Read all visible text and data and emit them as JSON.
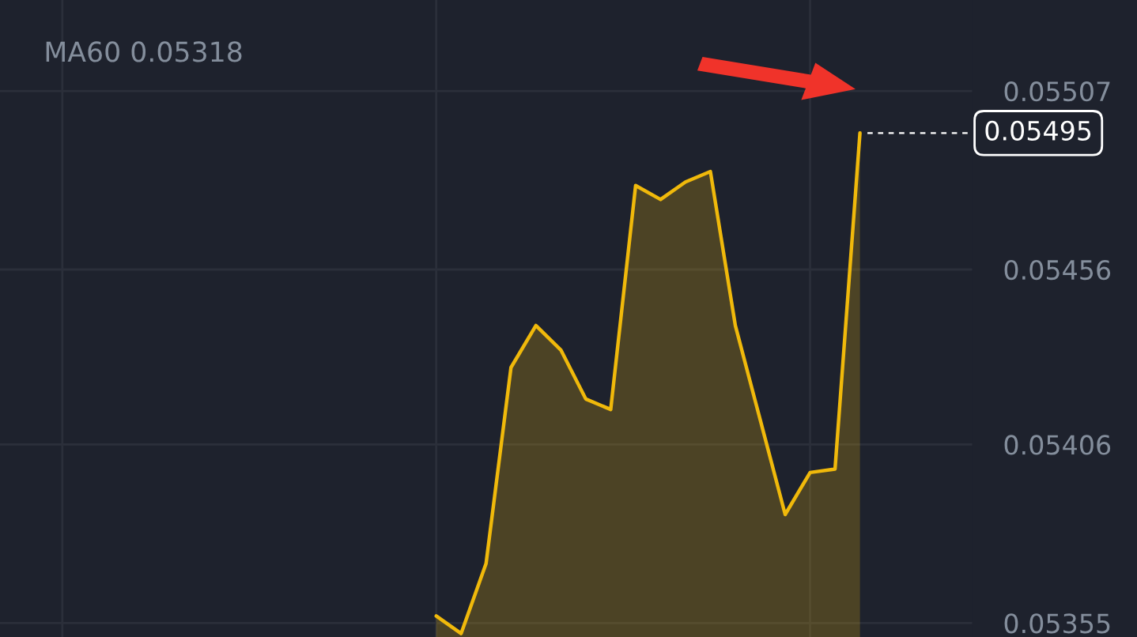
{
  "chart_data": {
    "type": "area",
    "categories": [
      null,
      null,
      null,
      null,
      null,
      null,
      null,
      null,
      null,
      null,
      null,
      null,
      null,
      null,
      null,
      null,
      null,
      null,
      null,
      null,
      null,
      null,
      null,
      null,
      null,
      null,
      null,
      null,
      null,
      null,
      null,
      null,
      null,
      null,
      null,
      null,
      null,
      null,
      null
    ],
    "series": [
      {
        "color": "#f0b90b",
        "values": [
          null,
          null,
          null,
          null,
          null,
          null,
          null,
          null,
          null,
          null,
          null,
          null,
          null,
          null,
          null,
          null,
          null,
          0.05357,
          0.05352,
          0.05372,
          0.05428,
          0.0544,
          0.05433,
          0.05419,
          0.05416,
          0.0548,
          0.05476,
          0.05481,
          0.05484,
          0.0544,
          0.05413,
          0.05386,
          0.05398,
          0.05399,
          0.05495,
          null,
          null,
          null,
          null
        ]
      }
    ],
    "ylim": [
      0.05351,
      0.05533
    ],
    "yticks": [
      0.05355,
      0.05406,
      0.05456,
      0.05507
    ],
    "grid": true,
    "tick_labels": "y",
    "legend": false,
    "ref_lines": [
      {
        "axis": "y",
        "value": 0.05495,
        "label": "0.05495",
        "line_style": "dashed",
        "color": "#ffffff"
      }
    ],
    "annotations": [
      "MA60 0.05318"
    ]
  }
}
